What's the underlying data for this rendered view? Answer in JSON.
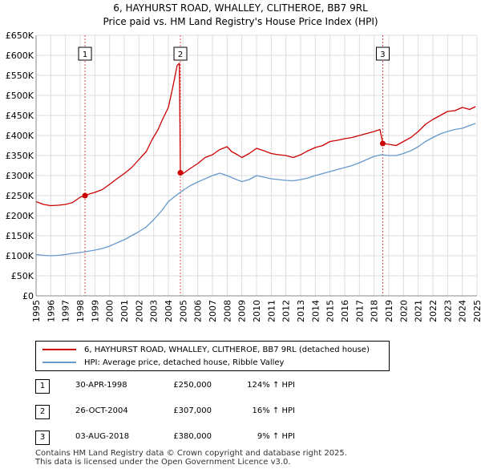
{
  "title": {
    "line1": "6, HAYHURST ROAD, WHALLEY, CLITHEROE, BB7 9RL",
    "line2": "Price paid vs. HM Land Registry's House Price Index (HPI)"
  },
  "chart_data": {
    "type": "line",
    "xlim": [
      1995,
      2025
    ],
    "ylim": [
      0,
      650000
    ],
    "xticks": [
      1995,
      1996,
      1997,
      1998,
      1999,
      2000,
      2001,
      2002,
      2003,
      2004,
      2005,
      2006,
      2007,
      2008,
      2009,
      2010,
      2011,
      2012,
      2013,
      2014,
      2015,
      2016,
      2017,
      2018,
      2019,
      2020,
      2021,
      2022,
      2023,
      2024,
      2025
    ],
    "yticks": [
      0,
      50000,
      100000,
      150000,
      200000,
      250000,
      300000,
      350000,
      400000,
      450000,
      500000,
      550000,
      600000,
      650000
    ],
    "ytick_labels": [
      "£0",
      "£50K",
      "£100K",
      "£150K",
      "£200K",
      "£250K",
      "£300K",
      "£350K",
      "£400K",
      "£450K",
      "£500K",
      "£550K",
      "£600K",
      "£650K"
    ],
    "colors": {
      "property": "#cc0000",
      "hpi": "#6699cc",
      "marker_line": "#cc0000"
    },
    "series": [
      {
        "name": "6, HAYHURST ROAD, WHALLEY, CLITHEROE, BB7 9RL (detached house)",
        "x": [
          1995.0,
          1995.5,
          1996.0,
          1996.5,
          1997.0,
          1997.5,
          1998.0,
          1998.33,
          1998.7,
          1999.0,
          1999.5,
          2000.0,
          2000.5,
          2001.0,
          2001.5,
          2002.0,
          2002.5,
          2002.9,
          2003.3,
          2003.6,
          2004.0,
          2004.3,
          2004.6,
          2004.75,
          2004.82,
          2005.0,
          2005.5,
          2006.0,
          2006.5,
          2007.0,
          2007.5,
          2008.0,
          2008.3,
          2008.7,
          2009.0,
          2009.5,
          2010.0,
          2010.5,
          2011.0,
          2011.5,
          2012.0,
          2012.5,
          2013.0,
          2013.5,
          2014.0,
          2014.5,
          2015.0,
          2015.5,
          2016.0,
          2016.5,
          2017.0,
          2017.5,
          2018.0,
          2018.4,
          2018.59,
          2019.0,
          2019.5,
          2020.0,
          2020.5,
          2021.0,
          2021.5,
          2022.0,
          2022.5,
          2023.0,
          2023.5,
          2024.0,
          2024.5,
          2024.9
        ],
        "y": [
          235000,
          228000,
          225000,
          226000,
          228000,
          233000,
          246000,
          250000,
          255000,
          258000,
          265000,
          278000,
          292000,
          305000,
          320000,
          340000,
          360000,
          390000,
          415000,
          440000,
          470000,
          520000,
          575000,
          580000,
          307000,
          305000,
          318000,
          330000,
          345000,
          352000,
          365000,
          372000,
          360000,
          352000,
          345000,
          355000,
          368000,
          362000,
          355000,
          352000,
          350000,
          345000,
          352000,
          362000,
          370000,
          375000,
          385000,
          388000,
          392000,
          395000,
          400000,
          405000,
          410000,
          415000,
          380000,
          378000,
          375000,
          385000,
          395000,
          410000,
          428000,
          440000,
          450000,
          460000,
          462000,
          470000,
          465000,
          472000
        ]
      },
      {
        "name": "HPI: Average price, detached house, Ribble Valley",
        "x": [
          1995.0,
          1995.5,
          1996.0,
          1996.5,
          1997.0,
          1997.5,
          1998.0,
          1998.5,
          1999.0,
          1999.5,
          2000.0,
          2000.5,
          2001.0,
          2001.5,
          2002.0,
          2002.5,
          2003.0,
          2003.5,
          2004.0,
          2004.5,
          2005.0,
          2005.5,
          2006.0,
          2006.5,
          2007.0,
          2007.5,
          2008.0,
          2008.5,
          2009.0,
          2009.5,
          2010.0,
          2010.5,
          2011.0,
          2011.5,
          2012.0,
          2012.5,
          2013.0,
          2013.5,
          2014.0,
          2014.5,
          2015.0,
          2015.5,
          2016.0,
          2016.5,
          2017.0,
          2017.5,
          2018.0,
          2018.5,
          2019.0,
          2019.5,
          2020.0,
          2020.5,
          2021.0,
          2021.5,
          2022.0,
          2022.5,
          2023.0,
          2023.5,
          2024.0,
          2024.5,
          2024.9
        ],
        "y": [
          103000,
          101000,
          100000,
          101000,
          103000,
          106000,
          108000,
          111000,
          114000,
          118000,
          124000,
          132000,
          140000,
          150000,
          160000,
          172000,
          190000,
          210000,
          235000,
          250000,
          263000,
          275000,
          284000,
          292000,
          300000,
          306000,
          300000,
          292000,
          285000,
          290000,
          300000,
          296000,
          292000,
          290000,
          288000,
          287000,
          290000,
          294000,
          300000,
          305000,
          310000,
          315000,
          320000,
          325000,
          332000,
          340000,
          348000,
          352000,
          350000,
          350000,
          355000,
          362000,
          372000,
          385000,
          395000,
          404000,
          410000,
          415000,
          418000,
          425000,
          430000
        ]
      }
    ],
    "sales": [
      {
        "label": "1",
        "x": 1998.33,
        "y": 250000
      },
      {
        "label": "2",
        "x": 2004.82,
        "y": 307000
      },
      {
        "label": "3",
        "x": 2018.59,
        "y": 380000
      }
    ]
  },
  "legend": {
    "property_label": "6, HAYHURST ROAD, WHALLEY, CLITHEROE, BB7 9RL (detached house)",
    "hpi_label": "HPI: Average price, detached house, Ribble Valley"
  },
  "sales_table": [
    {
      "num": "1",
      "date": "30-APR-1998",
      "price": "£250,000",
      "hpi": "124% ↑ HPI"
    },
    {
      "num": "2",
      "date": "26-OCT-2004",
      "price": "£307,000",
      "hpi": "16% ↑ HPI"
    },
    {
      "num": "3",
      "date": "03-AUG-2018",
      "price": "£380,000",
      "hpi": "9% ↑ HPI"
    }
  ],
  "footer": {
    "line1": "Contains HM Land Registry data © Crown copyright and database right 2025.",
    "line2": "This data is licensed under the Open Government Licence v3.0."
  }
}
